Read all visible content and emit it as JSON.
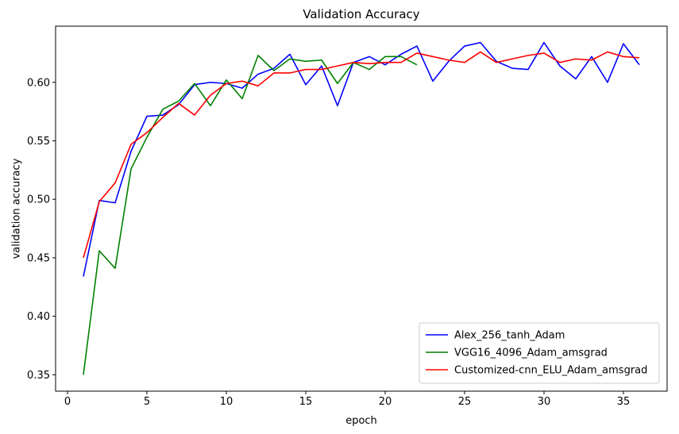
{
  "chart_data": {
    "type": "line",
    "title": "Validation Accuracy",
    "xlabel": "epoch",
    "ylabel": "validation accuracy",
    "xlim": [
      -0.75,
      37.75
    ],
    "ylim": [
      0.336,
      0.648
    ],
    "xticks": [
      0,
      5,
      10,
      15,
      20,
      25,
      30,
      35
    ],
    "yticks": [
      0.35,
      0.4,
      0.45,
      0.5,
      0.55,
      0.6
    ],
    "ytick_labels": [
      "0.35",
      "0.40",
      "0.45",
      "0.50",
      "0.55",
      "0.60"
    ],
    "grid": false,
    "legend_position": "lower-right",
    "series": [
      {
        "name": "Alex_256_tanh_Adam",
        "color": "#0000ff",
        "x": [
          1,
          2,
          3,
          4,
          5,
          6,
          7,
          8,
          9,
          10,
          11,
          12,
          13,
          14,
          15,
          16,
          17,
          18,
          19,
          20,
          21,
          22,
          23,
          24,
          25,
          26,
          27,
          28,
          29,
          30,
          31,
          32,
          33,
          34,
          35,
          36
        ],
        "values": [
          0.434,
          0.499,
          0.497,
          0.541,
          0.571,
          0.572,
          0.581,
          0.598,
          0.6,
          0.599,
          0.595,
          0.607,
          0.612,
          0.624,
          0.598,
          0.614,
          0.58,
          0.617,
          0.622,
          0.615,
          0.624,
          0.631,
          0.601,
          0.618,
          0.631,
          0.634,
          0.618,
          0.612,
          0.611,
          0.634,
          0.614,
          0.603,
          0.622,
          0.6,
          0.633,
          0.615
        ]
      },
      {
        "name": "VGG16_4096_Adam_amsgrad",
        "color": "#008000",
        "x": [
          1,
          2,
          3,
          4,
          5,
          6,
          7,
          8,
          9,
          10,
          11,
          12,
          13,
          14,
          15,
          16,
          17,
          18,
          19,
          20,
          21,
          22
        ],
        "values": [
          0.35,
          0.456,
          0.441,
          0.526,
          0.553,
          0.577,
          0.584,
          0.599,
          0.58,
          0.602,
          0.586,
          0.623,
          0.61,
          0.62,
          0.618,
          0.619,
          0.599,
          0.617,
          0.611,
          0.622,
          0.622,
          0.615
        ]
      },
      {
        "name": "Customized-cnn_ELU_Adam_amsgrad",
        "color": "#ff0000",
        "x": [
          1,
          2,
          3,
          4,
          5,
          6,
          7,
          8,
          9,
          10,
          11,
          12,
          13,
          14,
          15,
          16,
          17,
          18,
          19,
          20,
          21,
          22,
          23,
          24,
          25,
          26,
          27,
          28,
          29,
          30,
          31,
          32,
          33,
          34,
          35,
          36
        ],
        "values": [
          0.45,
          0.498,
          0.514,
          0.547,
          0.557,
          0.57,
          0.582,
          0.572,
          0.589,
          0.599,
          0.601,
          0.597,
          0.608,
          0.608,
          0.611,
          0.611,
          0.614,
          0.617,
          0.616,
          0.617,
          0.617,
          0.625,
          0.622,
          0.619,
          0.617,
          0.626,
          0.617,
          0.62,
          0.623,
          0.625,
          0.617,
          0.62,
          0.619,
          0.626,
          0.622,
          0.621
        ]
      }
    ]
  }
}
